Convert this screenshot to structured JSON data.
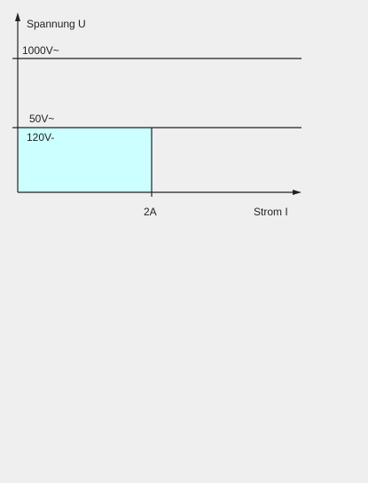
{
  "diagram": {
    "y_axis_label": "Spannung U",
    "x_axis_label": "Strom I",
    "levels": {
      "high": "1000V~",
      "ac_low": "50V~",
      "dc_low": "120V-"
    },
    "current_limit": "2A"
  },
  "colors": {
    "background": "#efefef",
    "line": "#222222",
    "safe_area_fill": "#ccffff"
  }
}
